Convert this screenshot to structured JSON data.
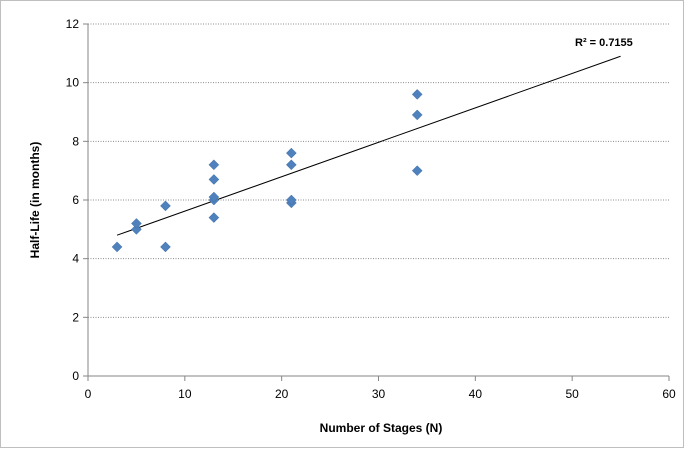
{
  "chart_data": {
    "type": "scatter",
    "xlabel": "Number of Stages (N)",
    "ylabel": "Half-Life (in months)",
    "xlim": [
      0,
      60
    ],
    "ylim": [
      0,
      12
    ],
    "xticks": [
      0,
      10,
      20,
      30,
      40,
      50,
      60
    ],
    "yticks": [
      0,
      2,
      4,
      6,
      8,
      10,
      12
    ],
    "grid": "horizontal dotted",
    "legend": "none",
    "marker": "diamond",
    "series": [
      {
        "color": "#4f81bd",
        "points": [
          {
            "x": 3,
            "y": 4.4
          },
          {
            "x": 5,
            "y": 5.0
          },
          {
            "x": 5,
            "y": 5.2
          },
          {
            "x": 8,
            "y": 4.4
          },
          {
            "x": 8,
            "y": 5.8
          },
          {
            "x": 13,
            "y": 5.4
          },
          {
            "x": 13,
            "y": 6.0
          },
          {
            "x": 13,
            "y": 6.1
          },
          {
            "x": 13,
            "y": 6.7
          },
          {
            "x": 13,
            "y": 7.2
          },
          {
            "x": 21,
            "y": 5.9
          },
          {
            "x": 21,
            "y": 6.0
          },
          {
            "x": 21,
            "y": 7.2
          },
          {
            "x": 21,
            "y": 7.6
          },
          {
            "x": 34,
            "y": 7.0
          },
          {
            "x": 34,
            "y": 8.9
          },
          {
            "x": 34,
            "y": 9.6
          }
        ]
      }
    ],
    "trendline": {
      "type": "linear",
      "x_range": [
        3,
        55
      ],
      "y_values": [
        4.8,
        10.9
      ],
      "r2_label": "R² = 0.7155"
    }
  }
}
